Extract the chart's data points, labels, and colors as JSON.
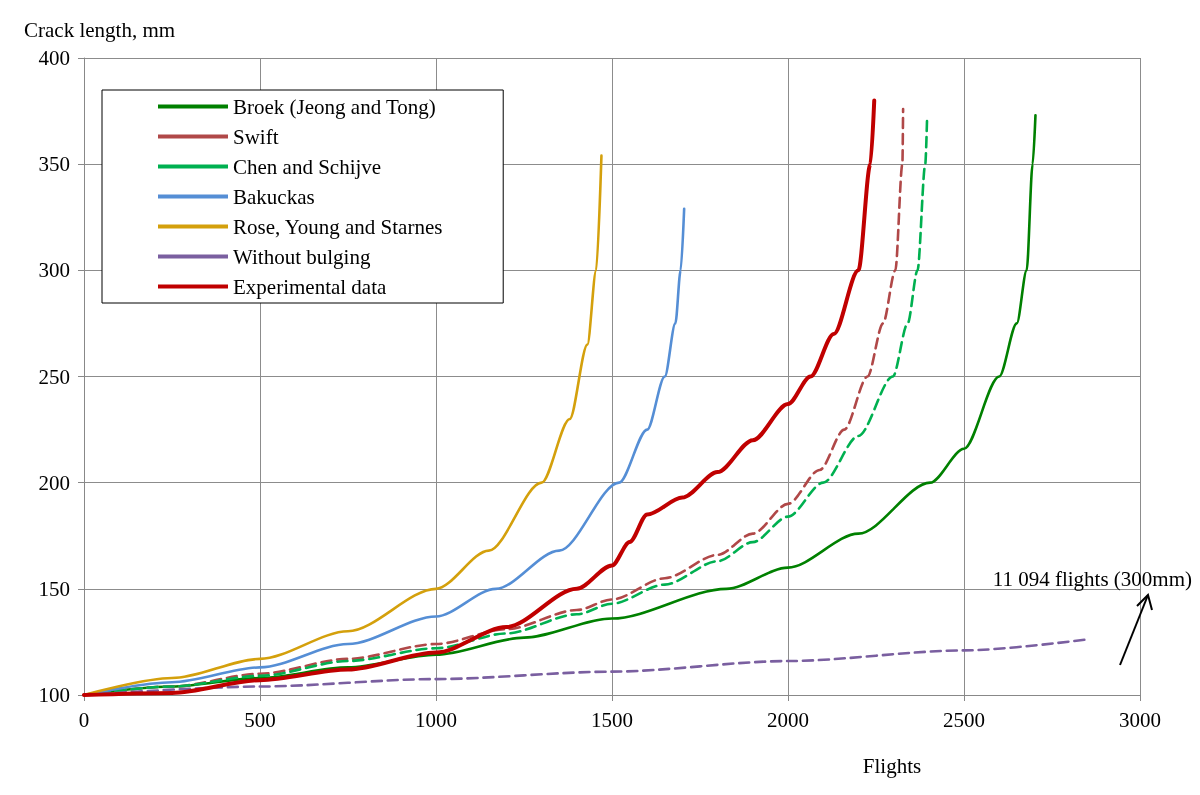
{
  "chart_data": {
    "type": "line",
    "xlabel": "Flights",
    "ylabel": "Crack length, mm",
    "xlim": [
      0,
      3000
    ],
    "xticks": [
      0,
      500,
      1000,
      1500,
      2000,
      2500,
      3000
    ],
    "ylim": [
      100,
      400
    ],
    "yticks": [
      100,
      150,
      200,
      250,
      300,
      350,
      400
    ],
    "grid": true,
    "legend": "top left",
    "marker": "none",
    "annotations": [
      "11 094 flights (300mm)"
    ],
    "series": [
      {
        "name": "Broek (Jeong and Tong)",
        "color": "#008000",
        "line_style": "solid",
        "x": [
          0,
          250,
          500,
          750,
          1000,
          1250,
          1500,
          1825,
          2000,
          2200,
          2404,
          2500,
          2600,
          2650,
          2678,
          2695,
          2703
        ],
        "values": [
          100,
          104,
          108,
          113,
          119,
          127,
          136,
          150,
          160,
          176,
          200,
          216,
          250,
          275,
          300,
          350,
          373
        ]
      },
      {
        "name": "Swift",
        "color": "#b04848",
        "line_style": "dashed",
        "x": [
          0,
          250,
          500,
          750,
          1000,
          1200,
          1400,
          1500,
          1650,
          1800,
          1900,
          2000,
          2090,
          2160,
          2226,
          2270,
          2305,
          2325,
          2327
        ],
        "values": [
          100,
          104,
          110,
          117,
          124,
          131,
          140,
          145,
          155,
          166,
          176,
          190,
          206,
          225,
          250,
          275,
          300,
          350,
          376
        ]
      },
      {
        "name": "Chen and Schijve",
        "color": "#00b050",
        "line_style": "dashed",
        "x": [
          0,
          250,
          500,
          750,
          1000,
          1200,
          1400,
          1500,
          1650,
          1800,
          1900,
          2000,
          2100,
          2200,
          2298,
          2340,
          2368,
          2390,
          2395
        ],
        "values": [
          100,
          104,
          109,
          116,
          122,
          129,
          138,
          143,
          152,
          163,
          172,
          184,
          200,
          222,
          250,
          275,
          300,
          350,
          371
        ]
      },
      {
        "name": "Bakuckas",
        "color": "#558ed5",
        "line_style": "solid",
        "x": [
          0,
          250,
          500,
          750,
          1000,
          1170,
          1350,
          1520,
          1600,
          1650,
          1680,
          1695,
          1705
        ],
        "values": [
          100,
          106,
          113,
          124,
          137,
          150,
          168,
          200,
          225,
          250,
          275,
          300,
          329
        ]
      },
      {
        "name": "Rose, Young and Starnes",
        "color": "#d4a00c",
        "line_style": "solid",
        "x": [
          0,
          250,
          500,
          750,
          1000,
          1150,
          1300,
          1380,
          1430,
          1455,
          1470
        ],
        "values": [
          100,
          108,
          117,
          130,
          150,
          168,
          200,
          230,
          265,
          300,
          354
        ]
      },
      {
        "name": "Without bulging",
        "color": "#7a5fa0",
        "line_style": "dashed",
        "x": [
          0,
          500,
          1000,
          1500,
          2000,
          2500,
          2842
        ],
        "values": [
          100,
          104,
          107.5,
          111,
          116,
          121,
          126
        ]
      },
      {
        "name": "Experimental data",
        "color": "#c00000",
        "line_style": "solid",
        "x": [
          0,
          250,
          500,
          750,
          1000,
          1200,
          1400,
          1500,
          1550,
          1600,
          1700,
          1800,
          1900,
          2000,
          2064,
          2130,
          2200,
          2234,
          2245
        ],
        "values": [
          100,
          101,
          107,
          112,
          120,
          132,
          150,
          161,
          172,
          185,
          193,
          205,
          220,
          237,
          250,
          270,
          300,
          350,
          380
        ]
      }
    ]
  }
}
